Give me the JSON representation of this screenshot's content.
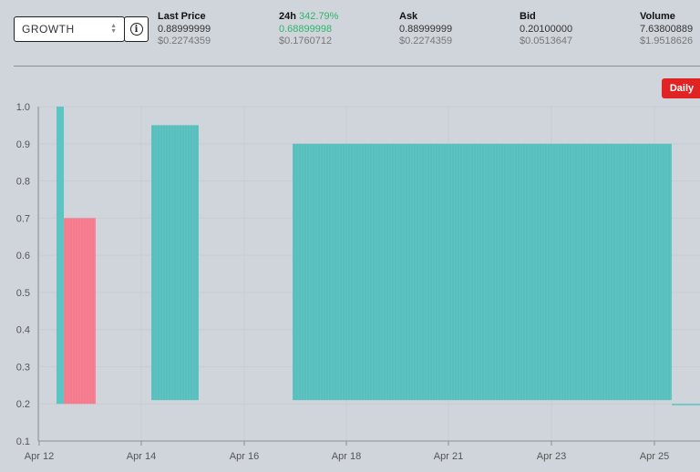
{
  "selector": {
    "value": "GROWTH",
    "icon": "chevron-up-down-icon"
  },
  "info": {
    "icon": "info-circle-icon",
    "glyph": "i"
  },
  "stats": {
    "last_price": {
      "label": "Last Price",
      "primary": "0.88999999",
      "secondary": "$0.2274359"
    },
    "change_24h": {
      "label": "24h",
      "change": "342.79%",
      "primary": "0.68899998",
      "secondary": "$0.1760712"
    },
    "ask": {
      "label": "Ask",
      "primary": "0.88999999",
      "secondary": "$0.2274359"
    },
    "bid": {
      "label": "Bid",
      "primary": "0.20100000",
      "secondary": "$0.0513647"
    },
    "volume": {
      "label": "Volume",
      "primary": "7.63800889",
      "secondary": "$1.9518626"
    }
  },
  "interval": {
    "label": "Daily",
    "color": "#e02424"
  },
  "colors": {
    "up": "#5cc4c2",
    "down": "#fa7f93",
    "axis": "#8a8f96"
  },
  "chart_data": {
    "type": "bar",
    "title": "",
    "xlabel": "",
    "ylabel": "",
    "ylim": [
      0.1,
      1.0
    ],
    "grid": true,
    "yticks": [
      "0.1",
      "0.2",
      "0.3",
      "0.4",
      "0.5",
      "0.6",
      "0.7",
      "0.8",
      "0.9",
      "1.0"
    ],
    "xticks": [
      "Apr 12",
      "Apr 14",
      "Apr 16",
      "Apr 18",
      "Apr 21",
      "Apr 23",
      "Apr 25"
    ],
    "series": [
      {
        "values": [
          {
            "start": "Apr 12",
            "end": "Apr 12",
            "low": 0.2,
            "high": 1.0,
            "direction": "up"
          },
          {
            "start": "Apr 12",
            "end": "Apr 13",
            "low": 0.2,
            "high": 0.7,
            "direction": "down"
          },
          {
            "start": "Apr 14",
            "end": "Apr 15",
            "low": 0.21,
            "high": 0.95,
            "direction": "up"
          },
          {
            "start": "Apr 17",
            "end": "Apr 25",
            "low": 0.21,
            "high": 0.9,
            "direction": "up"
          },
          {
            "start": "Apr 25",
            "end": "Apr 26",
            "low": 0.2,
            "high": 0.2,
            "direction": "up"
          }
        ]
      }
    ]
  }
}
